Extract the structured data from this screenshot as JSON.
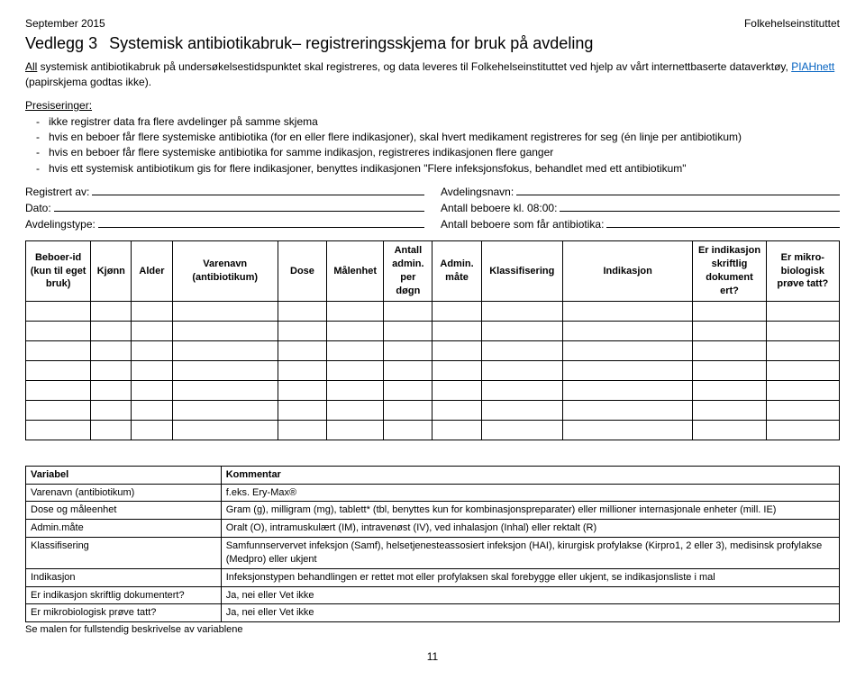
{
  "header": {
    "date": "September 2015",
    "institute": "Folkehelseinstituttet",
    "vedlegg": "Vedlegg 3",
    "title_rest": "Systemisk antibiotikabruk– registreringsskjema for bruk på avdeling"
  },
  "intro": {
    "lead_underline": "All",
    "sentence": " systemisk antibiotikabruk på undersøkelsestidspunktet skal registreres, og data leveres til Folkehelseinstituttet ved hjelp av vårt internettbaserte dataverktøy, ",
    "link": "PIAHnett",
    "paren": "(papirskjema godtas ikke)."
  },
  "presis": {
    "heading": "Presiseringer:",
    "items": [
      "ikke registrer data fra flere avdelinger på samme skjema",
      "hvis en beboer får flere systemiske antibiotika (for en eller flere indikasjoner), skal hvert medikament registreres for seg (én linje per antibiotikum)",
      "hvis en beboer får flere systemiske antibiotika for samme indikasjon, registreres indikasjonen flere ganger",
      "hvis ett systemisk antibiotikum gis for flere indikasjoner, benyttes indikasjonen \"Flere infeksjonsfokus, behandlet med ett antibiotikum\""
    ]
  },
  "form": {
    "reg_av": "Registrert av:",
    "avd_navn": "Avdelingsnavn:",
    "dato": "Dato:",
    "antall_kl": "Antall beboere kl. 08:00:",
    "avd_type": "Avdelingstype:",
    "antall_ab": "Antall beboere som får antibiotika:"
  },
  "grid": {
    "headers": [
      "Beboer-id (kun til eget bruk)",
      "Kjønn",
      "Alder",
      "Varenavn (antibiotikum)",
      "Dose",
      "Målenhet",
      "Antall admin. per døgn",
      "Admin. måte",
      "Klassifisering",
      "Indikasjon",
      "Er indikasjon skriftlig dokument ert?",
      "Er mikro-biologisk prøve tatt?"
    ],
    "col_widths": [
      "8%",
      "5%",
      "5%",
      "13%",
      "6%",
      "7%",
      "6%",
      "6%",
      "10%",
      "16%",
      "9%",
      "9%"
    ],
    "blank_rows": 7
  },
  "defs": {
    "headers": [
      "Variabel",
      "Kommentar"
    ],
    "col_widths": [
      "24%",
      "76%"
    ],
    "rows": [
      [
        "Varenavn (antibiotikum)",
        "f.eks. Ery-Max®"
      ],
      [
        "Dose og måleenhet",
        "Gram (g), milligram (mg), tablett* (tbl, benyttes kun for kombinasjonspreparater) eller millioner internasjonale enheter (mill. IE)"
      ],
      [
        "Admin.måte",
        "Oralt (O), intramuskulært (IM), intravenøst (IV), ved inhalasjon (Inhal) eller rektalt (R)"
      ],
      [
        "Klassifisering",
        "Samfunnservervet infeksjon (Samf), helsetjenesteassosiert infeksjon (HAI), kirurgisk profylakse (Kirpro1, 2 eller 3), medisinsk profylakse (Medpro) eller ukjent"
      ],
      [
        "Indikasjon",
        "Infeksjonstypen behandlingen er rettet mot eller profylaksen skal forebygge eller ukjent, se indikasjonsliste i mal"
      ],
      [
        "Er indikasjon skriftlig dokumentert?",
        "Ja, nei eller Vet ikke"
      ],
      [
        "Er mikrobiologisk prøve tatt?",
        "Ja, nei eller Vet ikke"
      ]
    ],
    "footer": "Se malen for fullstendig beskrivelse av variablene"
  },
  "page_number": "11"
}
